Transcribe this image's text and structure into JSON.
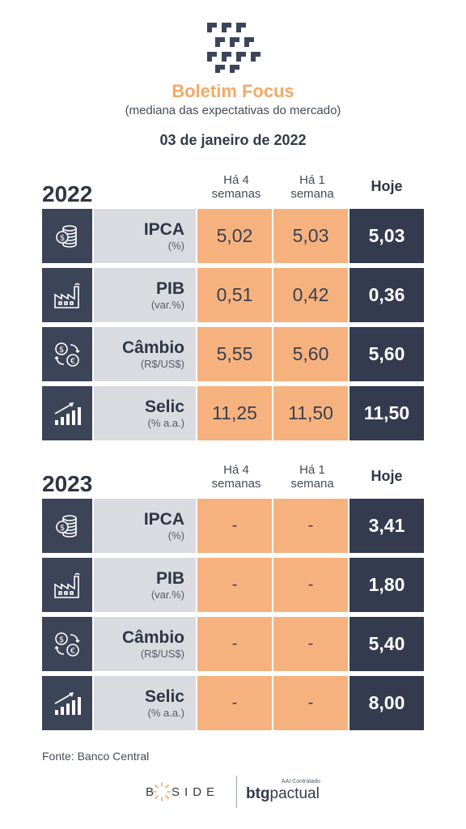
{
  "header": {
    "title": "Boletim Focus",
    "subtitle": "(mediana das expectativas do mercado)",
    "date": "03 de janeiro de 2022"
  },
  "columns": {
    "four_weeks": [
      "Há 4",
      "semanas"
    ],
    "one_week": [
      "Há 1",
      "semana"
    ],
    "today": "Hoje"
  },
  "sections": [
    {
      "year": "2022",
      "rows": [
        {
          "icon": "coins-dollar-icon",
          "name": "IPCA",
          "unit": "(%)",
          "four_weeks": "5,02",
          "one_week": "5,03",
          "today": "5,03"
        },
        {
          "icon": "factory-icon",
          "name": "PIB",
          "unit": "(var.%)",
          "four_weeks": "0,51",
          "one_week": "0,42",
          "today": "0,36"
        },
        {
          "icon": "currency-exchange-icon",
          "name": "Câmbio",
          "unit": "(R$/US$)",
          "four_weeks": "5,55",
          "one_week": "5,60",
          "today": "5,60"
        },
        {
          "icon": "growth-chart-icon",
          "name": "Selic",
          "unit": "(% a.a.)",
          "four_weeks": "11,25",
          "one_week": "11,50",
          "today": "11,50"
        }
      ]
    },
    {
      "year": "2023",
      "rows": [
        {
          "icon": "coins-dollar-icon",
          "name": "IPCA",
          "unit": "(%)",
          "four_weeks": "-",
          "one_week": "-",
          "today": "3,41"
        },
        {
          "icon": "factory-icon",
          "name": "PIB",
          "unit": "(var.%)",
          "four_weeks": "-",
          "one_week": "-",
          "today": "1,80"
        },
        {
          "icon": "currency-exchange-icon",
          "name": "Câmbio",
          "unit": "(R$/US$)",
          "four_weeks": "-",
          "one_week": "-",
          "today": "5,40"
        },
        {
          "icon": "growth-chart-icon",
          "name": "Selic",
          "unit": "(% a.a.)",
          "four_weeks": "-",
          "one_week": "-",
          "today": "8,00"
        }
      ]
    }
  ],
  "footer": {
    "source": "Fonte: Banco Central",
    "bside_b": "B",
    "bside_rest": "SIDE",
    "btg_small": "AAI Contratado",
    "btg_bold": "btg",
    "btg_rest": "pactual"
  },
  "colors": {
    "accent": "#f4a966",
    "navy": "#343b4f",
    "orange_cell": "#f6b27e",
    "grey_cell": "#dadbe0"
  }
}
